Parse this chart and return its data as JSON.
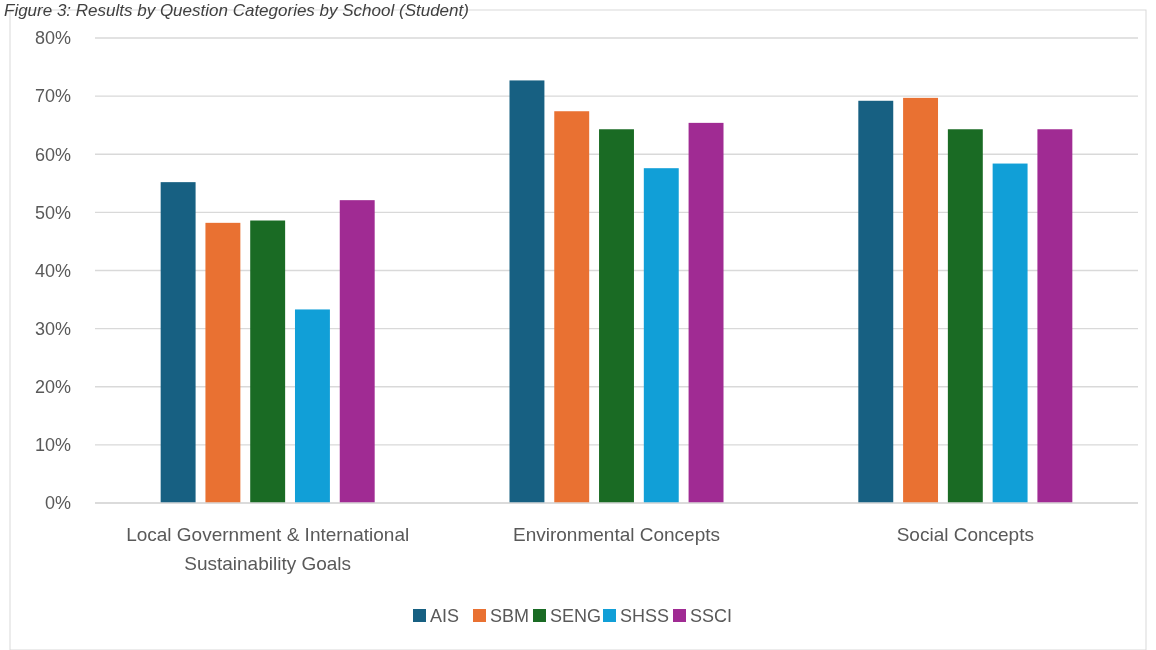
{
  "chart_data": {
    "type": "bar",
    "title": "Figure 3: Results by Question Categories by School (Student)",
    "categories": [
      "Local Government & International Sustainability Goals",
      "Environmental Concepts",
      "Social Concepts"
    ],
    "series": [
      {
        "name": "AIS",
        "color": "#176082",
        "values": [
          55.2,
          72.7,
          69.2
        ]
      },
      {
        "name": "SBM",
        "color": "#e97132",
        "values": [
          48.2,
          67.4,
          69.7
        ]
      },
      {
        "name": "SENG",
        "color": "#1a6b24",
        "values": [
          48.6,
          64.3,
          64.3
        ]
      },
      {
        "name": "SHSS",
        "color": "#119fd7",
        "values": [
          33.3,
          57.6,
          58.4
        ]
      },
      {
        "name": "SSCI",
        "color": "#a02b93",
        "values": [
          52.1,
          65.4,
          64.3
        ]
      }
    ],
    "ylim": [
      0,
      80
    ],
    "yticks": [
      {
        "value": 0,
        "label": "0%"
      },
      {
        "value": 10,
        "label": "10%"
      },
      {
        "value": 20,
        "label": "20%"
      },
      {
        "value": 30,
        "label": "30%"
      },
      {
        "value": 40,
        "label": "40%"
      },
      {
        "value": 50,
        "label": "50%"
      },
      {
        "value": 60,
        "label": "60%"
      },
      {
        "value": 70,
        "label": "70%"
      },
      {
        "value": 80,
        "label": "80%"
      }
    ],
    "grid": "y",
    "legend": "bottom"
  }
}
